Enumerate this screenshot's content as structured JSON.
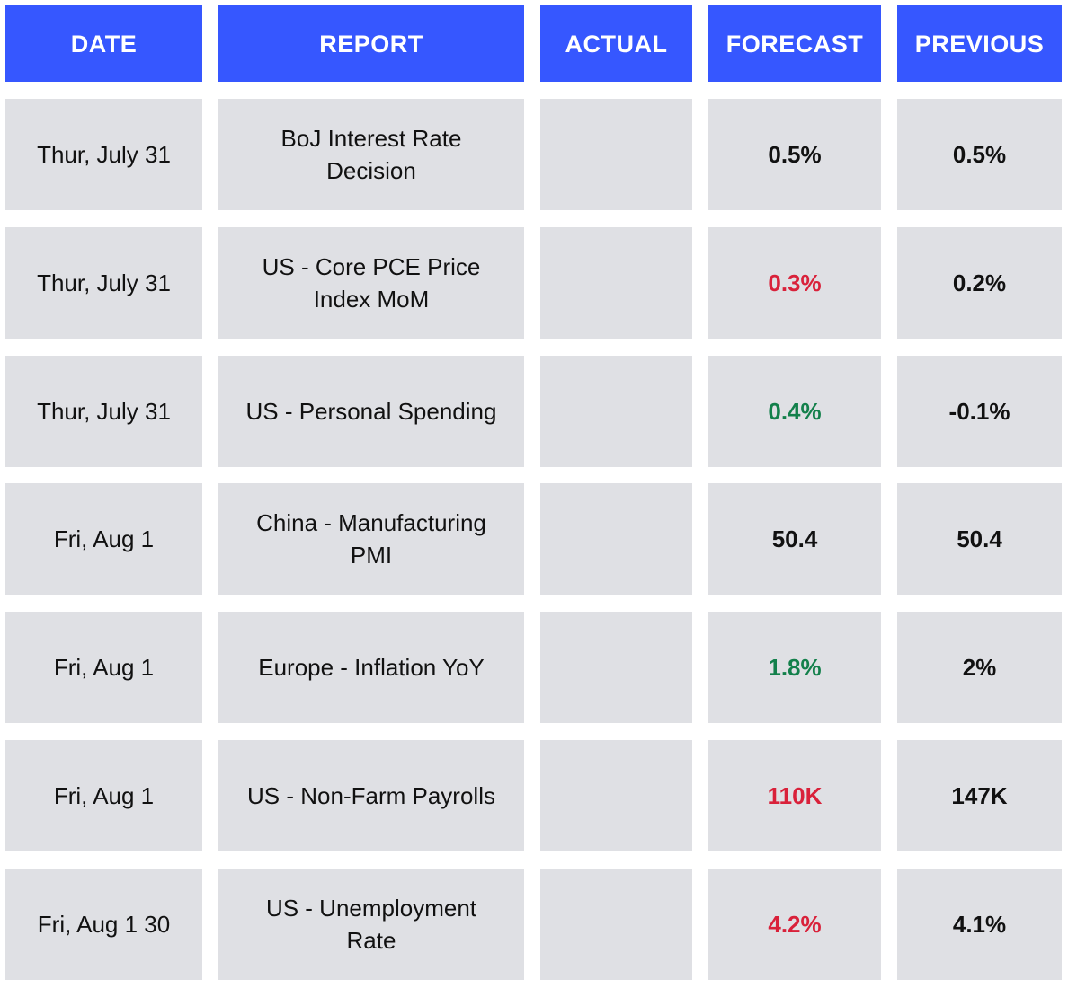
{
  "table": {
    "headers": [
      "DATE",
      "REPORT",
      "ACTUAL",
      "FORECAST",
      "PREVIOUS"
    ],
    "rows": [
      {
        "date": "Thur, July 31",
        "report": "BoJ Interest Rate Decision",
        "forecast": "0.5%",
        "forecast_color": "#111111",
        "previous": "0.5%"
      },
      {
        "date": "Thur, July 31",
        "report": "US - Core PCE Price Index MoM",
        "forecast": "0.3%",
        "forecast_color": "#d9213a",
        "previous": "0.2%"
      },
      {
        "date": "Thur, July 31",
        "report": "US - Personal Spending",
        "forecast": "0.4%",
        "forecast_color": "#13804b",
        "previous": "-0.1%"
      },
      {
        "date": "Fri, Aug 1",
        "report": "China - Manufacturing PMI",
        "forecast": "50.4",
        "forecast_color": "#111111",
        "previous": "50.4"
      },
      {
        "date": "Fri, Aug 1",
        "report": "Europe - Inflation YoY",
        "forecast": "1.8%",
        "forecast_color": "#13804b",
        "previous": "2%"
      },
      {
        "date": "Fri, Aug 1",
        "report": "US - Non-Farm Payrolls",
        "forecast": "110K",
        "forecast_color": "#d9213a",
        "previous": "147K"
      },
      {
        "date": "Fri, Aug 1 30",
        "report": "US - Unemployment Rate",
        "forecast": "4.2%",
        "forecast_color": "#d9213a",
        "previous": "4.1%"
      }
    ]
  }
}
